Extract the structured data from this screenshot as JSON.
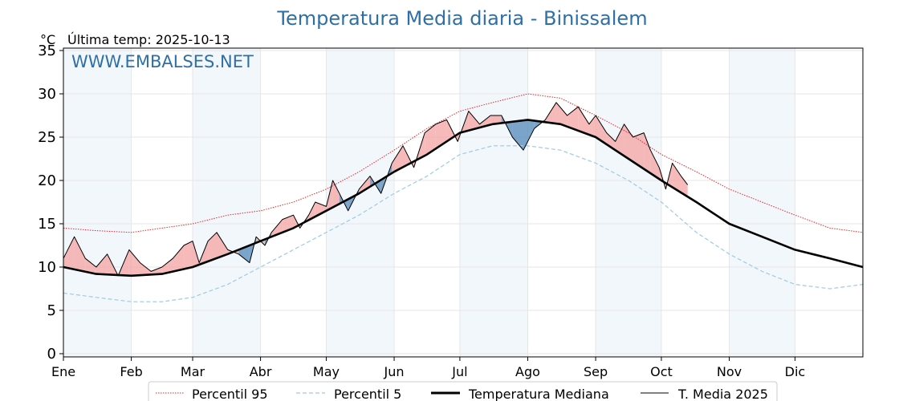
{
  "chart_data": {
    "type": "line",
    "title": "Temperatura Media diaria - Binissalem",
    "unit_label": "°C",
    "subtitle": "Última temp: 2025-10-13",
    "watermark": "WWW.EMBALSES.NET",
    "ylim": [
      0,
      35
    ],
    "y_ticks": [
      0,
      5,
      10,
      15,
      20,
      25,
      30,
      35
    ],
    "x_ticks": [
      {
        "label": "Ene",
        "day": 0
      },
      {
        "label": "Feb",
        "day": 31
      },
      {
        "label": "Mar",
        "day": 59
      },
      {
        "label": "Abr",
        "day": 90
      },
      {
        "label": "May",
        "day": 120
      },
      {
        "label": "Jun",
        "day": 151
      },
      {
        "label": "Jul",
        "day": 181
      },
      {
        "label": "Ago",
        "day": 212
      },
      {
        "label": "Sep",
        "day": 243
      },
      {
        "label": "Oct",
        "day": 273
      },
      {
        "label": "Nov",
        "day": 304
      },
      {
        "label": "Dic",
        "day": 334
      }
    ],
    "xlim": [
      0,
      365
    ],
    "grid": true,
    "legend_position": "bottom",
    "series": [
      {
        "name": "Percentil 95",
        "color": "#e8262a",
        "style": "dotted",
        "points": [
          [
            0,
            14.5
          ],
          [
            15,
            14.2
          ],
          [
            31,
            14.0
          ],
          [
            45,
            14.5
          ],
          [
            59,
            15.0
          ],
          [
            75,
            16.0
          ],
          [
            90,
            16.5
          ],
          [
            105,
            17.5
          ],
          [
            120,
            19.0
          ],
          [
            135,
            21.0
          ],
          [
            151,
            23.5
          ],
          [
            166,
            26.0
          ],
          [
            181,
            28.0
          ],
          [
            196,
            29.0
          ],
          [
            212,
            30.0
          ],
          [
            227,
            29.5
          ],
          [
            243,
            27.5
          ],
          [
            258,
            25.5
          ],
          [
            273,
            23.0
          ],
          [
            289,
            21.0
          ],
          [
            304,
            19.0
          ],
          [
            319,
            17.5
          ],
          [
            334,
            16.0
          ],
          [
            350,
            14.5
          ],
          [
            365,
            14.0
          ]
        ]
      },
      {
        "name": "Percentil 5",
        "color": "#9ecae1",
        "style": "dashed",
        "points": [
          [
            0,
            7.0
          ],
          [
            15,
            6.5
          ],
          [
            31,
            6.0
          ],
          [
            45,
            6.0
          ],
          [
            59,
            6.5
          ],
          [
            75,
            8.0
          ],
          [
            90,
            10.0
          ],
          [
            105,
            12.0
          ],
          [
            120,
            14.0
          ],
          [
            135,
            16.0
          ],
          [
            151,
            18.5
          ],
          [
            166,
            20.5
          ],
          [
            181,
            23.0
          ],
          [
            196,
            24.0
          ],
          [
            212,
            24.0
          ],
          [
            227,
            23.5
          ],
          [
            243,
            22.0
          ],
          [
            258,
            20.0
          ],
          [
            273,
            17.5
          ],
          [
            289,
            14.0
          ],
          [
            304,
            11.5
          ],
          [
            319,
            9.5
          ],
          [
            334,
            8.0
          ],
          [
            350,
            7.5
          ],
          [
            365,
            8.0
          ]
        ]
      },
      {
        "name": "Temperatura Mediana",
        "color": "#000000",
        "style": "thick",
        "points": [
          [
            0,
            10.0
          ],
          [
            15,
            9.2
          ],
          [
            31,
            9.0
          ],
          [
            45,
            9.2
          ],
          [
            59,
            10.0
          ],
          [
            75,
            11.5
          ],
          [
            90,
            13.0
          ],
          [
            105,
            14.5
          ],
          [
            120,
            16.5
          ],
          [
            135,
            18.5
          ],
          [
            151,
            21.0
          ],
          [
            166,
            23.0
          ],
          [
            181,
            25.5
          ],
          [
            196,
            26.5
          ],
          [
            212,
            27.0
          ],
          [
            227,
            26.5
          ],
          [
            243,
            25.0
          ],
          [
            258,
            22.5
          ],
          [
            273,
            20.0
          ],
          [
            289,
            17.5
          ],
          [
            304,
            15.0
          ],
          [
            319,
            13.5
          ],
          [
            334,
            12.0
          ],
          [
            350,
            11.0
          ],
          [
            365,
            10.0
          ]
        ]
      },
      {
        "name": "T. Media 2025",
        "color": "#000000",
        "style": "thin",
        "points": [
          [
            0,
            11.0
          ],
          [
            5,
            13.5
          ],
          [
            10,
            11.0
          ],
          [
            15,
            10.0
          ],
          [
            20,
            11.5
          ],
          [
            25,
            9.0
          ],
          [
            30,
            12.0
          ],
          [
            35,
            10.5
          ],
          [
            40,
            9.5
          ],
          [
            45,
            10.0
          ],
          [
            50,
            11.0
          ],
          [
            55,
            12.5
          ],
          [
            59,
            13.0
          ],
          [
            62,
            10.5
          ],
          [
            66,
            13.0
          ],
          [
            70,
            14.0
          ],
          [
            75,
            12.0
          ],
          [
            80,
            11.5
          ],
          [
            85,
            10.5
          ],
          [
            88,
            13.5
          ],
          [
            92,
            12.5
          ],
          [
            95,
            14.0
          ],
          [
            100,
            15.5
          ],
          [
            105,
            16.0
          ],
          [
            108,
            14.5
          ],
          [
            112,
            16.0
          ],
          [
            115,
            17.5
          ],
          [
            120,
            17.0
          ],
          [
            123,
            20.0
          ],
          [
            126,
            18.5
          ],
          [
            130,
            16.5
          ],
          [
            135,
            19.0
          ],
          [
            140,
            20.5
          ],
          [
            145,
            18.5
          ],
          [
            150,
            22.0
          ],
          [
            155,
            24.0
          ],
          [
            160,
            21.5
          ],
          [
            165,
            25.5
          ],
          [
            170,
            26.5
          ],
          [
            175,
            27.0
          ],
          [
            180,
            24.5
          ],
          [
            185,
            28.0
          ],
          [
            190,
            26.5
          ],
          [
            195,
            27.5
          ],
          [
            200,
            27.5
          ],
          [
            205,
            25.0
          ],
          [
            210,
            23.5
          ],
          [
            215,
            26.0
          ],
          [
            220,
            27.0
          ],
          [
            225,
            29.0
          ],
          [
            230,
            27.5
          ],
          [
            235,
            28.5
          ],
          [
            240,
            26.5
          ],
          [
            243,
            27.5
          ],
          [
            248,
            25.5
          ],
          [
            252,
            24.5
          ],
          [
            256,
            26.5
          ],
          [
            260,
            25.0
          ],
          [
            265,
            25.5
          ],
          [
            268,
            23.5
          ],
          [
            272,
            21.5
          ],
          [
            275,
            19.0
          ],
          [
            278,
            22.0
          ],
          [
            282,
            20.5
          ],
          [
            285,
            19.5
          ]
        ]
      }
    ]
  }
}
